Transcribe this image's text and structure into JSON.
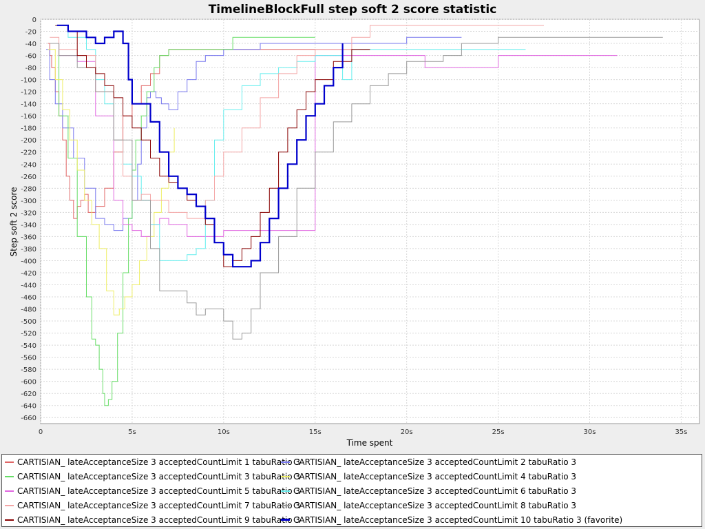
{
  "chart_data": {
    "type": "line",
    "title": "TimelineBlockFull step soft 2 score statistic",
    "xlabel": "Time spent",
    "ylabel": "Step soft 2 score",
    "xlim": [
      0,
      36
    ],
    "ylim": [
      -670,
      0
    ],
    "x_ticks": [
      0,
      5,
      10,
      15,
      20,
      25,
      30,
      35
    ],
    "x_tick_labels": [
      "0",
      "5s",
      "10s",
      "15s",
      "20s",
      "25s",
      "30s",
      "35s"
    ],
    "y_ticks": [
      0,
      -20,
      -40,
      -60,
      -80,
      -100,
      -120,
      -140,
      -160,
      -180,
      -200,
      -220,
      -240,
      -260,
      -280,
      -300,
      -320,
      -340,
      -360,
      -380,
      -400,
      -420,
      -440,
      -460,
      -480,
      -500,
      -520,
      -540,
      -560,
      -580,
      -600,
      -620,
      -640,
      -660
    ],
    "grid": true,
    "legend_position": "bottom",
    "series": [
      {
        "name": "CARTISIAN_ lateAcceptanceSize 3 acceptedCountLimit 1 tabuRatio 3",
        "color": "#e06666",
        "x": [
          0.4,
          0.5,
          0.6,
          0.8,
          1.0,
          1.2,
          1.4,
          1.6,
          1.8,
          2.0,
          2.2,
          2.4,
          2.6,
          3.0,
          3.5,
          4.0,
          4.5,
          5.0,
          5.5,
          6.0,
          6.5,
          7.0,
          9.0,
          10.0,
          12.0,
          15.0,
          18.0
        ],
        "y": [
          -40,
          -60,
          -80,
          -120,
          -160,
          -200,
          -260,
          -300,
          -330,
          -310,
          -300,
          -290,
          -320,
          -310,
          -280,
          -220,
          -160,
          -140,
          -110,
          -90,
          -60,
          -50,
          -50,
          -50,
          -50,
          -50,
          -50
        ]
      },
      {
        "name": "CARTISIAN_ lateAcceptanceSize 3 acceptedCountLimit 2 tabuRatio 3",
        "color": "#7777ee",
        "x": [
          0.3,
          0.5,
          0.8,
          1.2,
          1.8,
          2.4,
          3.0,
          3.5,
          4.0,
          4.5,
          5.0,
          5.3,
          5.5,
          5.8,
          6.0,
          6.3,
          6.6,
          7.0,
          7.5,
          8.0,
          8.5,
          9.0,
          10.0,
          12.0,
          15.0,
          20.0,
          23.0
        ],
        "y": [
          -50,
          -100,
          -140,
          -180,
          -230,
          -280,
          -330,
          -340,
          -350,
          -330,
          -300,
          -240,
          -180,
          -130,
          -120,
          -130,
          -140,
          -150,
          -120,
          -100,
          -70,
          -60,
          -50,
          -40,
          -40,
          -30,
          -30
        ]
      },
      {
        "name": "CARTISIAN_ lateAcceptanceSize 3 acceptedCountLimit 3 tabuRatio 3",
        "color": "#66dd66",
        "x": [
          0.5,
          1.0,
          1.5,
          2.0,
          2.5,
          2.8,
          3.0,
          3.2,
          3.4,
          3.5,
          3.7,
          3.9,
          4.2,
          4.5,
          4.8,
          5.0,
          5.2,
          5.5,
          5.8,
          6.2,
          6.5,
          7.0,
          8.0,
          10.0,
          10.5,
          12.0,
          15.0
        ],
        "y": [
          -40,
          -160,
          -230,
          -360,
          -460,
          -530,
          -540,
          -580,
          -620,
          -640,
          -630,
          -600,
          -520,
          -420,
          -330,
          -250,
          -200,
          -160,
          -120,
          -80,
          -60,
          -50,
          -50,
          -50,
          -30,
          -30,
          -30
        ]
      },
      {
        "name": "CARTISIAN_ lateAcceptanceSize 3 acceptedCountLimit 4 tabuRatio 3",
        "color": "#eeee66",
        "x": [
          0.4,
          0.8,
          1.2,
          1.6,
          2.0,
          2.4,
          2.8,
          3.2,
          3.6,
          4.0,
          4.3,
          4.6,
          5.0,
          5.4,
          5.8,
          6.2,
          6.6,
          7.0,
          7.3
        ],
        "y": [
          -50,
          -100,
          -150,
          -200,
          -250,
          -300,
          -340,
          -380,
          -450,
          -490,
          -480,
          -460,
          -440,
          -400,
          -360,
          -320,
          -280,
          -220,
          -180
        ]
      },
      {
        "name": "CARTISIAN_ lateAcceptanceSize 3 acceptedCountLimit 5 tabuRatio 3",
        "color": "#e066e0",
        "x": [
          0.5,
          1.0,
          2.0,
          3.0,
          4.0,
          4.5,
          5.0,
          5.5,
          6.0,
          6.5,
          7.0,
          8.0,
          9.0,
          10.0,
          12.0,
          15.0,
          20.0,
          21.0,
          25.0,
          31.5
        ],
        "y": [
          -40,
          -60,
          -70,
          -160,
          -300,
          -340,
          -350,
          -360,
          -340,
          -330,
          -340,
          -360,
          -360,
          -350,
          -350,
          -60,
          -60,
          -80,
          -60,
          -60
        ]
      },
      {
        "name": "CARTISIAN_ lateAcceptanceSize 3 acceptedCountLimit 6 tabuRatio 3",
        "color": "#66eeee",
        "x": [
          0.8,
          1.5,
          2.5,
          3.0,
          3.5,
          4.0,
          4.5,
          5.0,
          5.5,
          6.0,
          6.5,
          7.0,
          7.5,
          8.0,
          8.5,
          9.0,
          9.5,
          10.0,
          11.0,
          12.0,
          13.0,
          14.0,
          15.0,
          16.0,
          16.5,
          17.0,
          20.0,
          26.5
        ],
        "y": [
          -10,
          -30,
          -50,
          -100,
          -140,
          -200,
          -240,
          -260,
          -300,
          -340,
          -400,
          -400,
          -400,
          -390,
          -380,
          -300,
          -200,
          -150,
          -110,
          -90,
          -80,
          -70,
          -60,
          -60,
          -100,
          -50,
          -50,
          -50
        ]
      },
      {
        "name": "CARTISIAN_ lateAcceptanceSize 3 acceptedCountLimit 7 tabuRatio 3",
        "color": "#f4a6a6",
        "x": [
          0.5,
          1.0,
          2.0,
          3.0,
          4.0,
          4.5,
          5.0,
          5.5,
          6.0,
          7.0,
          8.0,
          9.0,
          9.5,
          10.0,
          11.0,
          12.0,
          13.0,
          14.0,
          15.0,
          17.0,
          18.0,
          22.0,
          27.5
        ],
        "y": [
          -30,
          -50,
          -60,
          -120,
          -200,
          -260,
          -300,
          -290,
          -300,
          -320,
          -330,
          -300,
          -260,
          -220,
          -180,
          -130,
          -90,
          -60,
          -50,
          -30,
          -10,
          -10,
          -10
        ]
      },
      {
        "name": "CARTISIAN_ lateAcceptanceSize 3 acceptedCountLimit 8 tabuRatio 3",
        "color": "#999999",
        "x": [
          0.5,
          1.0,
          2.0,
          3.0,
          4.0,
          5.0,
          6.0,
          6.5,
          7.0,
          8.0,
          8.5,
          9.0,
          10.0,
          10.5,
          11.0,
          11.5,
          12.0,
          13.0,
          14.0,
          15.0,
          16.0,
          17.0,
          18.0,
          19.0,
          20.0,
          22.0,
          23.0,
          25.0,
          30.0,
          34.0
        ],
        "y": [
          -40,
          -60,
          -80,
          -120,
          -200,
          -300,
          -380,
          -450,
          -450,
          -470,
          -490,
          -480,
          -500,
          -530,
          -520,
          -480,
          -420,
          -360,
          -280,
          -220,
          -170,
          -140,
          -110,
          -90,
          -70,
          -60,
          -40,
          -30,
          -30,
          -30
        ]
      },
      {
        "name": "CARTISIAN_ lateAcceptanceSize 3 acceptedCountLimit 9 tabuRatio 3",
        "color": "#880000",
        "x": [
          0.8,
          1.5,
          2.0,
          2.5,
          3.0,
          3.5,
          4.0,
          4.5,
          5.0,
          5.5,
          6.0,
          6.5,
          7.0,
          7.5,
          8.0,
          8.5,
          9.0,
          9.5,
          10.0,
          10.5,
          11.0,
          11.5,
          12.0,
          12.5,
          13.0,
          13.5,
          14.0,
          14.5,
          15.0,
          16.0,
          17.0,
          18.0
        ],
        "y": [
          -10,
          -20,
          -60,
          -80,
          -90,
          -110,
          -130,
          -160,
          -180,
          -200,
          -230,
          -260,
          -270,
          -280,
          -300,
          -310,
          -340,
          -370,
          -410,
          -400,
          -380,
          -360,
          -320,
          -280,
          -220,
          -180,
          -150,
          -120,
          -100,
          -70,
          -50,
          -50
        ]
      },
      {
        "name": "CARTISIAN_ lateAcceptanceSize 3 acceptedCountLimit 10 tabuRatio 3 (favorite)",
        "color": "#0000cc",
        "bold": true,
        "x": [
          0.9,
          1.2,
          1.5,
          2.0,
          2.5,
          3.0,
          3.5,
          4.0,
          4.2,
          4.5,
          4.8,
          5.0,
          5.5,
          6.0,
          6.5,
          7.0,
          7.5,
          8.0,
          8.5,
          9.0,
          9.5,
          10.0,
          10.5,
          11.0,
          11.5,
          12.0,
          12.5,
          13.0,
          13.5,
          14.0,
          14.5,
          15.0,
          15.5,
          16.0,
          16.5
        ],
        "y": [
          -10,
          -10,
          -20,
          -20,
          -30,
          -40,
          -30,
          -20,
          -20,
          -40,
          -100,
          -140,
          -140,
          -170,
          -220,
          -260,
          -280,
          -290,
          -310,
          -330,
          -370,
          -390,
          -410,
          -410,
          -400,
          -370,
          -330,
          -280,
          -240,
          -200,
          -160,
          -140,
          -110,
          -80,
          -40
        ]
      }
    ]
  }
}
